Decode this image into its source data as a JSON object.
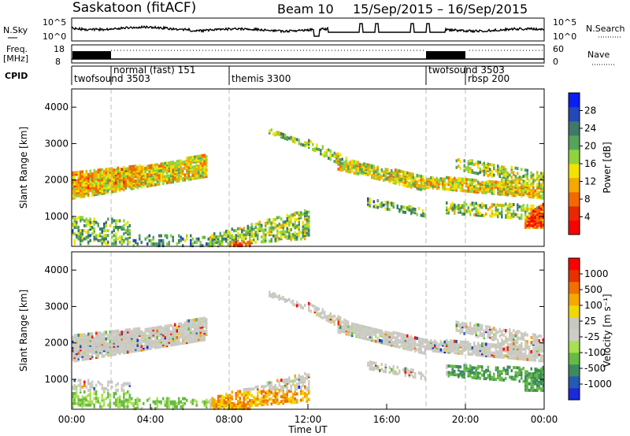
{
  "header": {
    "station": "Saskatoon (fitACF)",
    "beam": "Beam 10",
    "date_range": "15/Sep/2015 – 16/Sep/2015"
  },
  "top_panels": {
    "nsky_label": "N.Sky",
    "nsearch_label": "N.Search",
    "nsky_ticks": [
      "10^5",
      "10^0"
    ],
    "nsearch_ticks": [
      "10^5",
      "10^0"
    ],
    "freq_label": "Freq.",
    "freq_unit": "[MHz]",
    "freq_ticks": [
      "18",
      "8"
    ],
    "nave_label": "Nave",
    "nave_ticks": [
      "60",
      "0"
    ],
    "cpid_label": "CPID"
  },
  "cpid": [
    {
      "name": "twofsound 3503",
      "start_h": 0
    },
    {
      "name": "normal (fast) 151",
      "start_h": 2
    },
    {
      "name": "themis 3300",
      "start_h": 8
    },
    {
      "name": "twofsound 3503",
      "start_h": 18
    },
    {
      "name": "rbsp 200",
      "start_h": 20
    }
  ],
  "colorbars": {
    "power": {
      "label": "Power [dB]",
      "ticks": [
        "28",
        "24",
        "20",
        "16",
        "12",
        "8",
        "4"
      ],
      "colors": [
        "#0a1ef0",
        "#2548b8",
        "#3e7a6a",
        "#56a35a",
        "#8fd43c",
        "#f2e200",
        "#f5a800",
        "#f06a00",
        "#e82800",
        "#ff0000"
      ]
    },
    "velocity": {
      "label": "Velocity [m s⁻¹]",
      "ticks": [
        "1000",
        "500",
        "100",
        "25",
        "-25",
        "-100",
        "-500",
        "-1000"
      ],
      "colors": [
        "#1a2ad8",
        "#245ab0",
        "#3d8a60",
        "#66bb44",
        "#a8e050",
        "#cdcdc5",
        "#c8c8c0",
        "#f0d800",
        "#f5a800",
        "#f07000",
        "#e83000",
        "#ff0000"
      ]
    }
  },
  "chart_data": [
    {
      "type": "heatmap",
      "name": "Power",
      "ylabel": "Slant Range [km]",
      "yticks": [
        "4000",
        "3000",
        "2000",
        "1000"
      ],
      "ylim": [
        180,
        4500
      ],
      "xlim": [
        0,
        24
      ],
      "xticks": [
        "00:00",
        "04:00",
        "08:00",
        "12:00",
        "16:00",
        "20:00",
        "00:00"
      ],
      "xlabel": "Time UT"
    },
    {
      "type": "heatmap",
      "name": "Velocity",
      "ylabel": "Slant Range [km]",
      "yticks": [
        "4000",
        "3000",
        "2000",
        "1000"
      ],
      "ylim": [
        180,
        4500
      ],
      "xlim": [
        0,
        24
      ],
      "xticks": [
        "00:00",
        "04:00",
        "08:00",
        "12:00",
        "16:00",
        "20:00",
        "00:00"
      ],
      "xlabel": "Time UT"
    }
  ]
}
